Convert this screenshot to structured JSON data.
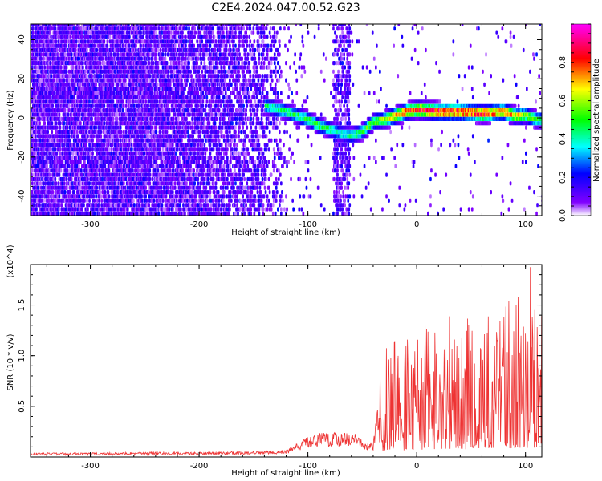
{
  "figure": {
    "title": "C2E4.2024.047.00.52.G23"
  },
  "chart_data": [
    {
      "type": "heatmap",
      "title": "",
      "xlabel": "Height of straight line (km)",
      "ylabel": "Frequency (Hz)",
      "xlim": [
        -355,
        115
      ],
      "ylim": [
        -50,
        48
      ],
      "x_ticks": [
        -300,
        -200,
        -100,
        0,
        100
      ],
      "x_tick_labels": [
        "-300",
        "-200",
        "-100",
        "0",
        "100"
      ],
      "y_ticks": [
        -40,
        -20,
        0,
        20,
        40
      ],
      "y_tick_labels": [
        "-40",
        "-20",
        "0",
        "20",
        "40"
      ],
      "colorbar": {
        "label": "Normalized spectral amplitude",
        "range": [
          0,
          1
        ],
        "ticks": [
          0,
          0.2,
          0.4,
          0.6,
          0.8
        ],
        "tick_labels": [
          "0.0",
          "0.2",
          "0.4",
          "0.6",
          "0.8"
        ],
        "colormap": [
          "#ffffff",
          "#8000ff",
          "#0000ff",
          "#00ffff",
          "#00ff00",
          "#ffff00",
          "#ff0000",
          "#ff00ff"
        ]
      },
      "signal_trace": {
        "x": [
          -140,
          -120,
          -100,
          -90,
          -80,
          -70,
          -60,
          -50,
          -40,
          -30,
          -20,
          -10,
          0,
          20,
          40,
          60,
          80,
          90,
          100,
          110
        ],
        "frequency": [
          5,
          2,
          -2,
          -5,
          -7,
          -9,
          -10,
          -8,
          -3,
          -2,
          0,
          2,
          3,
          2,
          2,
          1,
          2,
          0,
          0,
          -2
        ],
        "peak_amplitude": [
          0.45,
          0.45,
          0.5,
          0.5,
          0.45,
          0.4,
          0.45,
          0.5,
          0.55,
          0.6,
          0.75,
          0.8,
          0.85,
          0.9,
          0.85,
          0.85,
          0.8,
          0.7,
          0.6,
          0.5
        ]
      },
      "noise_band": {
        "x_from": -78,
        "x_to": -62
      },
      "grid": false,
      "legend": "right"
    },
    {
      "type": "line",
      "title": "",
      "xlabel": "Height of straight line (km)",
      "ylabel": "SNR (10 * v/v)",
      "y_multiplier": "(x10^4)",
      "xlim": [
        -355,
        115
      ],
      "ylim": [
        0,
        19000
      ],
      "x_ticks": [
        -300,
        -200,
        -100,
        0,
        100
      ],
      "x_tick_labels": [
        "-300",
        "-200",
        "-100",
        "0",
        "100"
      ],
      "y_ticks": [
        5000,
        10000,
        15000
      ],
      "y_tick_labels": [
        "0.5",
        "1.0",
        "1.5"
      ],
      "color": "#ee3333",
      "series": [
        {
          "x": [
            -355,
            -300,
            -250,
            -200,
            -150,
            -120,
            -110,
            -100,
            -90,
            -80,
            -70,
            -60,
            -50,
            -40,
            -35,
            -30,
            -20,
            -10,
            0,
            10,
            20,
            30,
            40,
            50,
            60,
            70,
            80,
            90,
            100,
            110,
            115
          ],
          "values": [
            300,
            300,
            350,
            350,
            400,
            500,
            1000,
            1500,
            1700,
            1700,
            1800,
            1800,
            1300,
            1000,
            4000,
            6000,
            6500,
            6500,
            7000,
            7500,
            7500,
            8000,
            8000,
            7500,
            8500,
            9000,
            9000,
            8500,
            9500,
            9000,
            8500
          ]
        }
      ],
      "grid": false,
      "legend": "none"
    }
  ]
}
